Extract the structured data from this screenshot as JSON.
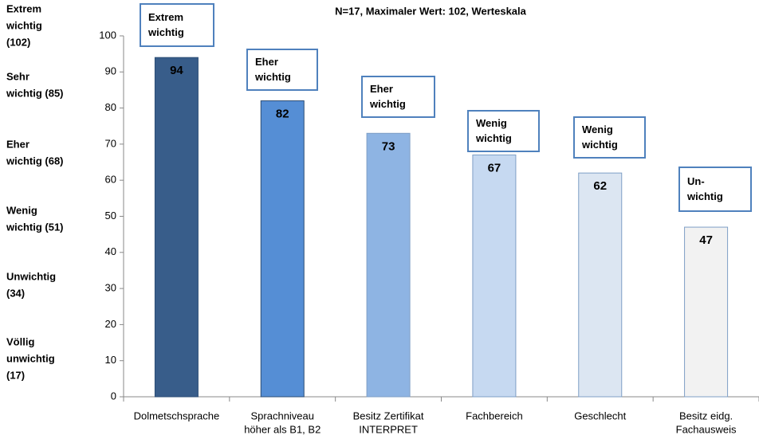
{
  "chart_data": {
    "type": "bar",
    "title": "N=17, Maximaler Wert: 102, Werteskala",
    "categories": [
      [
        "Dolmetschsprache"
      ],
      [
        "Sprachniveau",
        "höher als B1, B2"
      ],
      [
        "Besitz Zertifikat",
        "INTERPRET"
      ],
      [
        "Fachbereich"
      ],
      [
        "Geschlecht"
      ],
      [
        "Besitz eidg.",
        "Fachausweis"
      ]
    ],
    "values": [
      94,
      82,
      73,
      67,
      62,
      47
    ],
    "colors": [
      "#385d8a",
      "#558ed5",
      "#8eb4e3",
      "#c6d9f1",
      "#dce6f2",
      "#f2f2f2"
    ],
    "ylim": [
      0,
      100
    ],
    "yticks": [
      0,
      10,
      20,
      30,
      40,
      50,
      60,
      70,
      80,
      90,
      100
    ],
    "bar_annotations": [
      [
        "Extrem",
        "wichtig"
      ],
      [
        "Eher",
        "wichtig"
      ],
      [
        "Eher",
        "wichtig"
      ],
      [
        "Wenig",
        "wichtig"
      ],
      [
        "Wenig",
        "wichtig"
      ],
      [
        "Un-",
        "wichtig"
      ]
    ],
    "scale_labels": [
      [
        "Extrem",
        "wichtig",
        "(102)"
      ],
      [
        "Sehr",
        "wichtig (85)"
      ],
      [
        "Eher",
        "wichtig (68)"
      ],
      [
        "Wenig",
        "wichtig (51)"
      ],
      [
        "Unwichtig",
        "(34)"
      ],
      [
        "Völlig",
        "unwichtig",
        "(17)"
      ]
    ]
  }
}
